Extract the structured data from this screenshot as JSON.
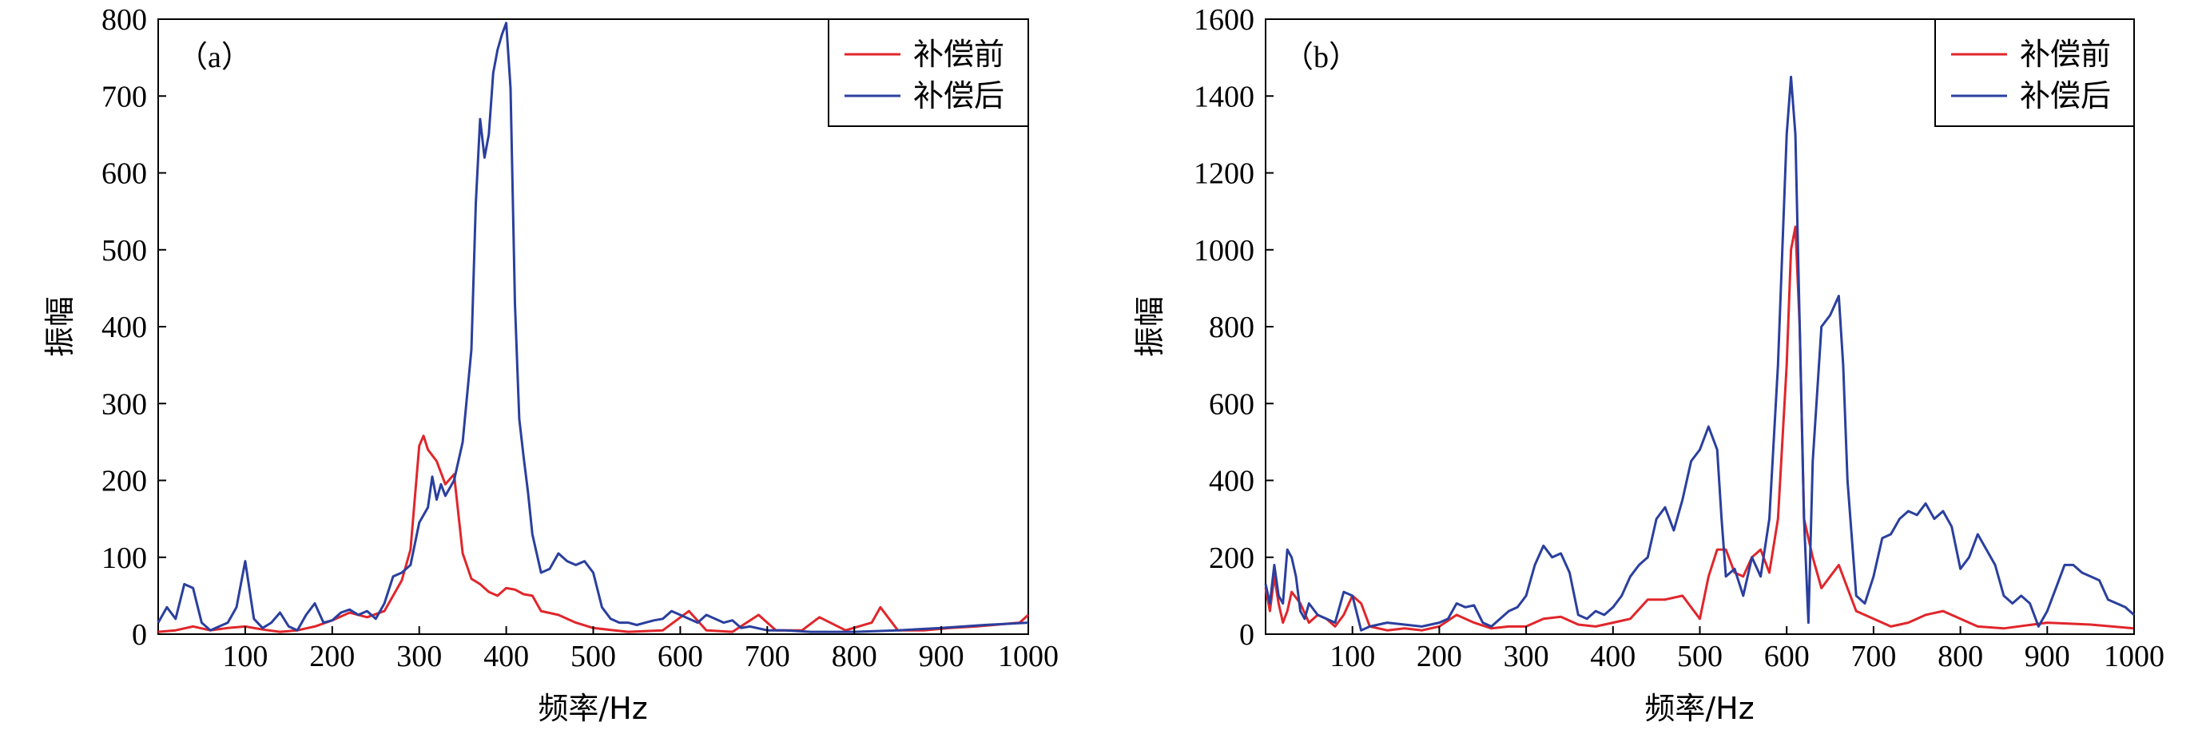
{
  "chart_data": [
    {
      "type": "line",
      "panel_label": "（a）",
      "xlabel": "频率/Hz",
      "ylabel": "振幅",
      "xlim": [
        0,
        1000
      ],
      "ylim": [
        0,
        800
      ],
      "xticks": [
        100,
        200,
        300,
        400,
        500,
        600,
        700,
        800,
        900,
        1000
      ],
      "yticks": [
        0,
        100,
        200,
        300,
        400,
        500,
        600,
        700,
        800
      ],
      "legend_position": "top-right",
      "series": [
        {
          "name": "补偿前",
          "color": "#e0262b",
          "x": [
            0,
            20,
            40,
            60,
            80,
            100,
            120,
            140,
            160,
            180,
            200,
            220,
            240,
            260,
            280,
            290,
            300,
            305,
            310,
            320,
            330,
            340,
            350,
            360,
            370,
            380,
            390,
            400,
            410,
            420,
            430,
            440,
            460,
            480,
            500,
            540,
            580,
            610,
            630,
            660,
            690,
            710,
            740,
            760,
            790,
            820,
            830,
            850,
            880,
            910,
            940,
            960,
            990,
            1000
          ],
          "y": [
            3,
            5,
            10,
            5,
            8,
            10,
            6,
            3,
            5,
            10,
            18,
            28,
            22,
            30,
            70,
            110,
            245,
            258,
            240,
            225,
            195,
            208,
            105,
            72,
            65,
            55,
            50,
            60,
            58,
            52,
            50,
            30,
            25,
            15,
            8,
            3,
            5,
            30,
            5,
            3,
            25,
            5,
            5,
            22,
            5,
            15,
            35,
            5,
            5,
            8,
            10,
            12,
            15,
            25
          ]
        },
        {
          "name": "补偿后",
          "color": "#2a3f9e",
          "x": [
            0,
            10,
            20,
            30,
            40,
            50,
            60,
            70,
            80,
            90,
            100,
            110,
            120,
            130,
            140,
            150,
            160,
            170,
            180,
            190,
            200,
            210,
            220,
            230,
            240,
            250,
            260,
            270,
            280,
            290,
            300,
            310,
            315,
            320,
            325,
            330,
            340,
            350,
            360,
            365,
            370,
            375,
            380,
            385,
            390,
            395,
            400,
            405,
            410,
            415,
            420,
            425,
            430,
            440,
            450,
            460,
            470,
            480,
            490,
            500,
            510,
            520,
            530,
            540,
            550,
            560,
            570,
            580,
            590,
            600,
            610,
            620,
            630,
            640,
            650,
            660,
            670,
            680,
            700,
            720,
            750,
            800,
            850,
            900,
            950,
            1000
          ],
          "y": [
            15,
            35,
            20,
            65,
            60,
            15,
            5,
            10,
            15,
            35,
            95,
            20,
            8,
            15,
            28,
            10,
            5,
            25,
            40,
            15,
            18,
            28,
            32,
            25,
            30,
            20,
            40,
            75,
            80,
            90,
            145,
            165,
            205,
            175,
            195,
            180,
            200,
            250,
            370,
            560,
            670,
            620,
            650,
            730,
            760,
            780,
            795,
            710,
            430,
            280,
            230,
            185,
            130,
            80,
            85,
            105,
            95,
            90,
            95,
            80,
            35,
            20,
            15,
            15,
            12,
            15,
            18,
            20,
            30,
            25,
            20,
            15,
            25,
            20,
            15,
            18,
            8,
            10,
            5,
            5,
            3,
            3,
            5,
            8,
            12,
            15
          ]
        }
      ]
    },
    {
      "type": "line",
      "panel_label": "（b）",
      "xlabel": "频率/Hz",
      "ylabel": "振幅",
      "xlim": [
        0,
        1000
      ],
      "ylim": [
        0,
        1600
      ],
      "xticks": [
        100,
        200,
        300,
        400,
        500,
        600,
        700,
        800,
        900,
        1000
      ],
      "yticks": [
        0,
        200,
        400,
        600,
        800,
        1000,
        1200,
        1400,
        1600
      ],
      "legend_position": "top-right",
      "series": [
        {
          "name": "补偿前",
          "color": "#e0262b",
          "x": [
            0,
            5,
            10,
            15,
            20,
            25,
            30,
            40,
            50,
            60,
            70,
            80,
            90,
            100,
            110,
            120,
            140,
            160,
            180,
            200,
            220,
            240,
            260,
            280,
            300,
            320,
            340,
            360,
            380,
            400,
            420,
            440,
            460,
            480,
            500,
            510,
            520,
            530,
            540,
            550,
            560,
            570,
            580,
            590,
            600,
            605,
            610,
            615,
            620,
            630,
            640,
            650,
            660,
            670,
            680,
            700,
            720,
            740,
            760,
            780,
            800,
            820,
            850,
            900,
            950,
            1000
          ],
          "y": [
            120,
            60,
            150,
            80,
            30,
            60,
            110,
            80,
            30,
            50,
            40,
            20,
            50,
            100,
            80,
            20,
            10,
            15,
            10,
            20,
            50,
            30,
            15,
            20,
            20,
            40,
            45,
            25,
            20,
            30,
            40,
            90,
            90,
            100,
            40,
            150,
            220,
            220,
            160,
            150,
            200,
            220,
            160,
            300,
            700,
            1000,
            1060,
            800,
            300,
            200,
            120,
            150,
            180,
            120,
            60,
            40,
            20,
            30,
            50,
            60,
            40,
            20,
            15,
            30,
            25,
            15
          ]
        },
        {
          "name": "补偿后",
          "color": "#2a3f9e",
          "x": [
            0,
            5,
            10,
            15,
            20,
            25,
            30,
            35,
            40,
            45,
            50,
            60,
            70,
            80,
            90,
            100,
            110,
            120,
            140,
            160,
            180,
            200,
            210,
            220,
            230,
            240,
            250,
            260,
            270,
            280,
            290,
            300,
            310,
            320,
            330,
            340,
            350,
            360,
            370,
            380,
            390,
            400,
            410,
            420,
            430,
            440,
            450,
            460,
            470,
            480,
            490,
            500,
            510,
            520,
            525,
            530,
            540,
            550,
            560,
            570,
            580,
            590,
            600,
            605,
            610,
            615,
            620,
            625,
            630,
            640,
            650,
            660,
            665,
            670,
            680,
            690,
            700,
            710,
            720,
            730,
            740,
            750,
            760,
            770,
            780,
            790,
            800,
            810,
            820,
            830,
            840,
            850,
            860,
            870,
            880,
            890,
            900,
            910,
            920,
            930,
            940,
            950,
            960,
            970,
            980,
            990,
            1000
          ],
          "y": [
            130,
            80,
            180,
            100,
            80,
            220,
            200,
            150,
            60,
            40,
            80,
            50,
            40,
            30,
            110,
            100,
            10,
            20,
            30,
            25,
            20,
            30,
            40,
            80,
            70,
            75,
            30,
            20,
            40,
            60,
            70,
            100,
            180,
            230,
            200,
            210,
            160,
            50,
            40,
            60,
            50,
            70,
            100,
            150,
            180,
            200,
            300,
            330,
            270,
            350,
            450,
            480,
            540,
            480,
            300,
            150,
            170,
            100,
            200,
            150,
            300,
            700,
            1300,
            1450,
            1300,
            800,
            300,
            30,
            450,
            800,
            830,
            880,
            700,
            400,
            100,
            80,
            150,
            250,
            260,
            300,
            320,
            310,
            340,
            300,
            320,
            280,
            170,
            200,
            260,
            220,
            180,
            100,
            80,
            100,
            80,
            20,
            60,
            120,
            180,
            180,
            160,
            150,
            140,
            90,
            80,
            70,
            50
          ]
        }
      ]
    }
  ]
}
